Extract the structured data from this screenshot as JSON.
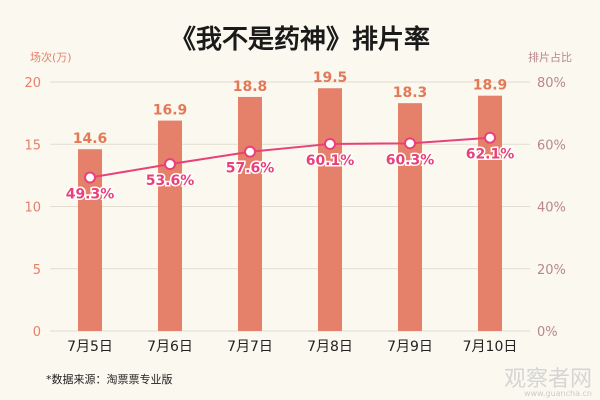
{
  "chart_data": {
    "type": "bar+line",
    "title": "《我不是药神》排片率",
    "categories": [
      "7月5日",
      "7月6日",
      "7月7日",
      "7月8日",
      "7月9日",
      "7月10日"
    ],
    "bar_series": {
      "values": [
        14.6,
        16.9,
        18.8,
        19.5,
        18.3,
        18.9
      ],
      "labels": [
        "14.6",
        "16.9",
        "18.8",
        "19.5",
        "18.3",
        "18.9"
      ],
      "axis": "left",
      "color": "#e5806a"
    },
    "line_series": {
      "values": [
        49.3,
        53.6,
        57.6,
        60.1,
        60.3,
        62.1
      ],
      "labels": [
        "49.3%",
        "53.6%",
        "57.6%",
        "60.1%",
        "60.3%",
        "62.1%"
      ],
      "axis": "right",
      "color": "#e8417a"
    },
    "left_axis": {
      "label": "场次(万)",
      "ylim": [
        0,
        20
      ],
      "ticks": [
        0,
        5,
        10,
        15,
        20
      ],
      "tick_labels": [
        "0",
        "5",
        "10",
        "15",
        "20"
      ],
      "color": "#e5806a"
    },
    "right_axis": {
      "label": "排片占比",
      "ylim": [
        0,
        80
      ],
      "ticks": [
        0,
        20,
        40,
        60,
        80
      ],
      "tick_labels": [
        "0%",
        "20%",
        "40%",
        "60%",
        "80%"
      ],
      "color": "#b9878a"
    },
    "grid": true,
    "bar_label_color": "#e27a58",
    "line_label_color": "#e8417a"
  },
  "footnote": "*数据来源：淘票票专业版",
  "watermark": {
    "logo_text": "观察者网",
    "url_text": "www.guancha.cn"
  }
}
